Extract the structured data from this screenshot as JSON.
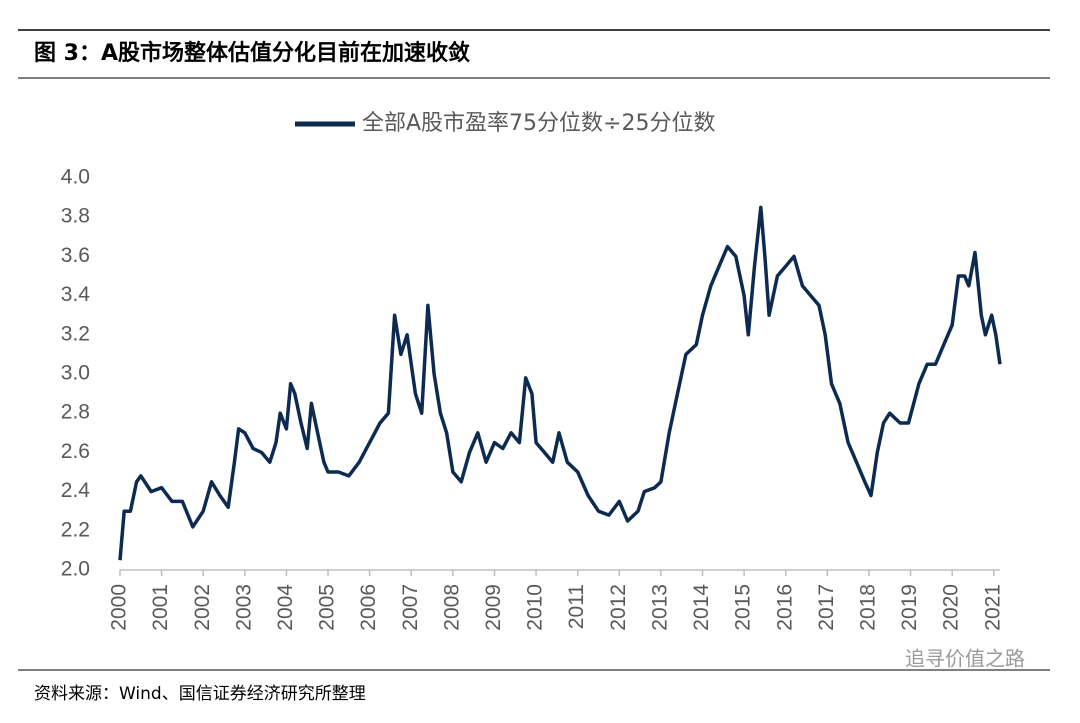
{
  "chart_data": {
    "type": "line",
    "title": "图 3：A股市场整体估值分化目前在加速收敛",
    "source": "资料来源：Wind、国信证券经济研究所整理",
    "watermark": "追寻价值之路",
    "xlim": [
      2000,
      2021.15
    ],
    "xticks": [
      2000,
      2001,
      2002,
      2003,
      2004,
      2005,
      2006,
      2007,
      2008,
      2009,
      2010,
      2011,
      2012,
      2013,
      2014,
      2015,
      2016,
      2017,
      2018,
      2019,
      2020,
      2021
    ],
    "ylim": [
      2.0,
      4.0
    ],
    "yticks": [
      {
        "value": 2.0,
        "label": "2.0"
      },
      {
        "value": 2.2,
        "label": "2.2"
      },
      {
        "value": 2.4,
        "label": "2.4"
      },
      {
        "value": 2.6,
        "label": "2.6"
      },
      {
        "value": 2.8,
        "label": "2.8"
      },
      {
        "value": 3.0,
        "label": "3.0"
      },
      {
        "value": 3.2,
        "label": "3.2"
      },
      {
        "value": 3.4,
        "label": "3.4"
      },
      {
        "value": 3.6,
        "label": "3.6"
      },
      {
        "value": 3.8,
        "label": "3.8"
      },
      {
        "value": 4.0,
        "label": "4.0"
      }
    ],
    "x": [
      2000.0,
      2000.1,
      2000.25,
      2000.4,
      2000.5,
      2000.75,
      2001.0,
      2001.25,
      2001.5,
      2001.75,
      2002.0,
      2002.2,
      2002.4,
      2002.6,
      2002.75,
      2002.85,
      2003.0,
      2003.2,
      2003.4,
      2003.6,
      2003.75,
      2003.85,
      2004.0,
      2004.1,
      2004.2,
      2004.35,
      2004.5,
      2004.6,
      2004.75,
      2004.9,
      2005.0,
      2005.25,
      2005.5,
      2005.75,
      2006.0,
      2006.25,
      2006.45,
      2006.6,
      2006.75,
      2006.9,
      2007.1,
      2007.25,
      2007.4,
      2007.55,
      2007.7,
      2007.85,
      2008.0,
      2008.2,
      2008.4,
      2008.6,
      2008.8,
      2009.0,
      2009.2,
      2009.4,
      2009.6,
      2009.75,
      2009.9,
      2010.0,
      2010.2,
      2010.4,
      2010.55,
      2010.75,
      2011.0,
      2011.25,
      2011.5,
      2011.75,
      2012.0,
      2012.2,
      2012.45,
      2012.6,
      2012.85,
      2013.0,
      2013.2,
      2013.4,
      2013.6,
      2013.85,
      2014.0,
      2014.2,
      2014.4,
      2014.6,
      2014.8,
      2015.0,
      2015.1,
      2015.25,
      2015.4,
      2015.5,
      2015.6,
      2015.8,
      2016.0,
      2016.2,
      2016.4,
      2016.6,
      2016.8,
      2016.95,
      2017.1,
      2017.3,
      2017.5,
      2017.7,
      2017.9,
      2018.05,
      2018.2,
      2018.35,
      2018.5,
      2018.75,
      2018.95,
      2019.2,
      2019.4,
      2019.6,
      2019.8,
      2020.0,
      2020.15,
      2020.3,
      2020.4,
      2020.55,
      2020.7,
      2020.8,
      2020.95,
      2021.05,
      2021.15
    ],
    "series": [
      {
        "name": "全部A股市盈率75分位数÷25分位数",
        "color": "#0d2a50",
        "values": [
          2.05,
          2.3,
          2.3,
          2.45,
          2.48,
          2.4,
          2.42,
          2.35,
          2.35,
          2.22,
          2.3,
          2.45,
          2.38,
          2.32,
          2.55,
          2.72,
          2.7,
          2.62,
          2.6,
          2.55,
          2.65,
          2.8,
          2.72,
          2.95,
          2.9,
          2.75,
          2.62,
          2.85,
          2.7,
          2.55,
          2.5,
          2.5,
          2.48,
          2.55,
          2.65,
          2.75,
          2.8,
          3.3,
          3.1,
          3.2,
          2.9,
          2.8,
          3.35,
          3.0,
          2.8,
          2.7,
          2.5,
          2.45,
          2.6,
          2.7,
          2.55,
          2.65,
          2.62,
          2.7,
          2.65,
          2.98,
          2.9,
          2.65,
          2.6,
          2.55,
          2.7,
          2.55,
          2.5,
          2.38,
          2.3,
          2.28,
          2.35,
          2.25,
          2.3,
          2.4,
          2.42,
          2.45,
          2.7,
          2.9,
          3.1,
          3.15,
          3.3,
          3.45,
          3.55,
          3.65,
          3.6,
          3.4,
          3.2,
          3.55,
          3.85,
          3.6,
          3.3,
          3.5,
          3.55,
          3.6,
          3.45,
          3.4,
          3.35,
          3.2,
          2.95,
          2.85,
          2.65,
          2.55,
          2.45,
          2.38,
          2.6,
          2.75,
          2.8,
          2.75,
          2.75,
          2.95,
          3.05,
          3.05,
          3.15,
          3.25,
          3.5,
          3.5,
          3.45,
          3.62,
          3.3,
          3.2,
          3.3,
          3.2,
          3.05
        ]
      }
    ]
  }
}
